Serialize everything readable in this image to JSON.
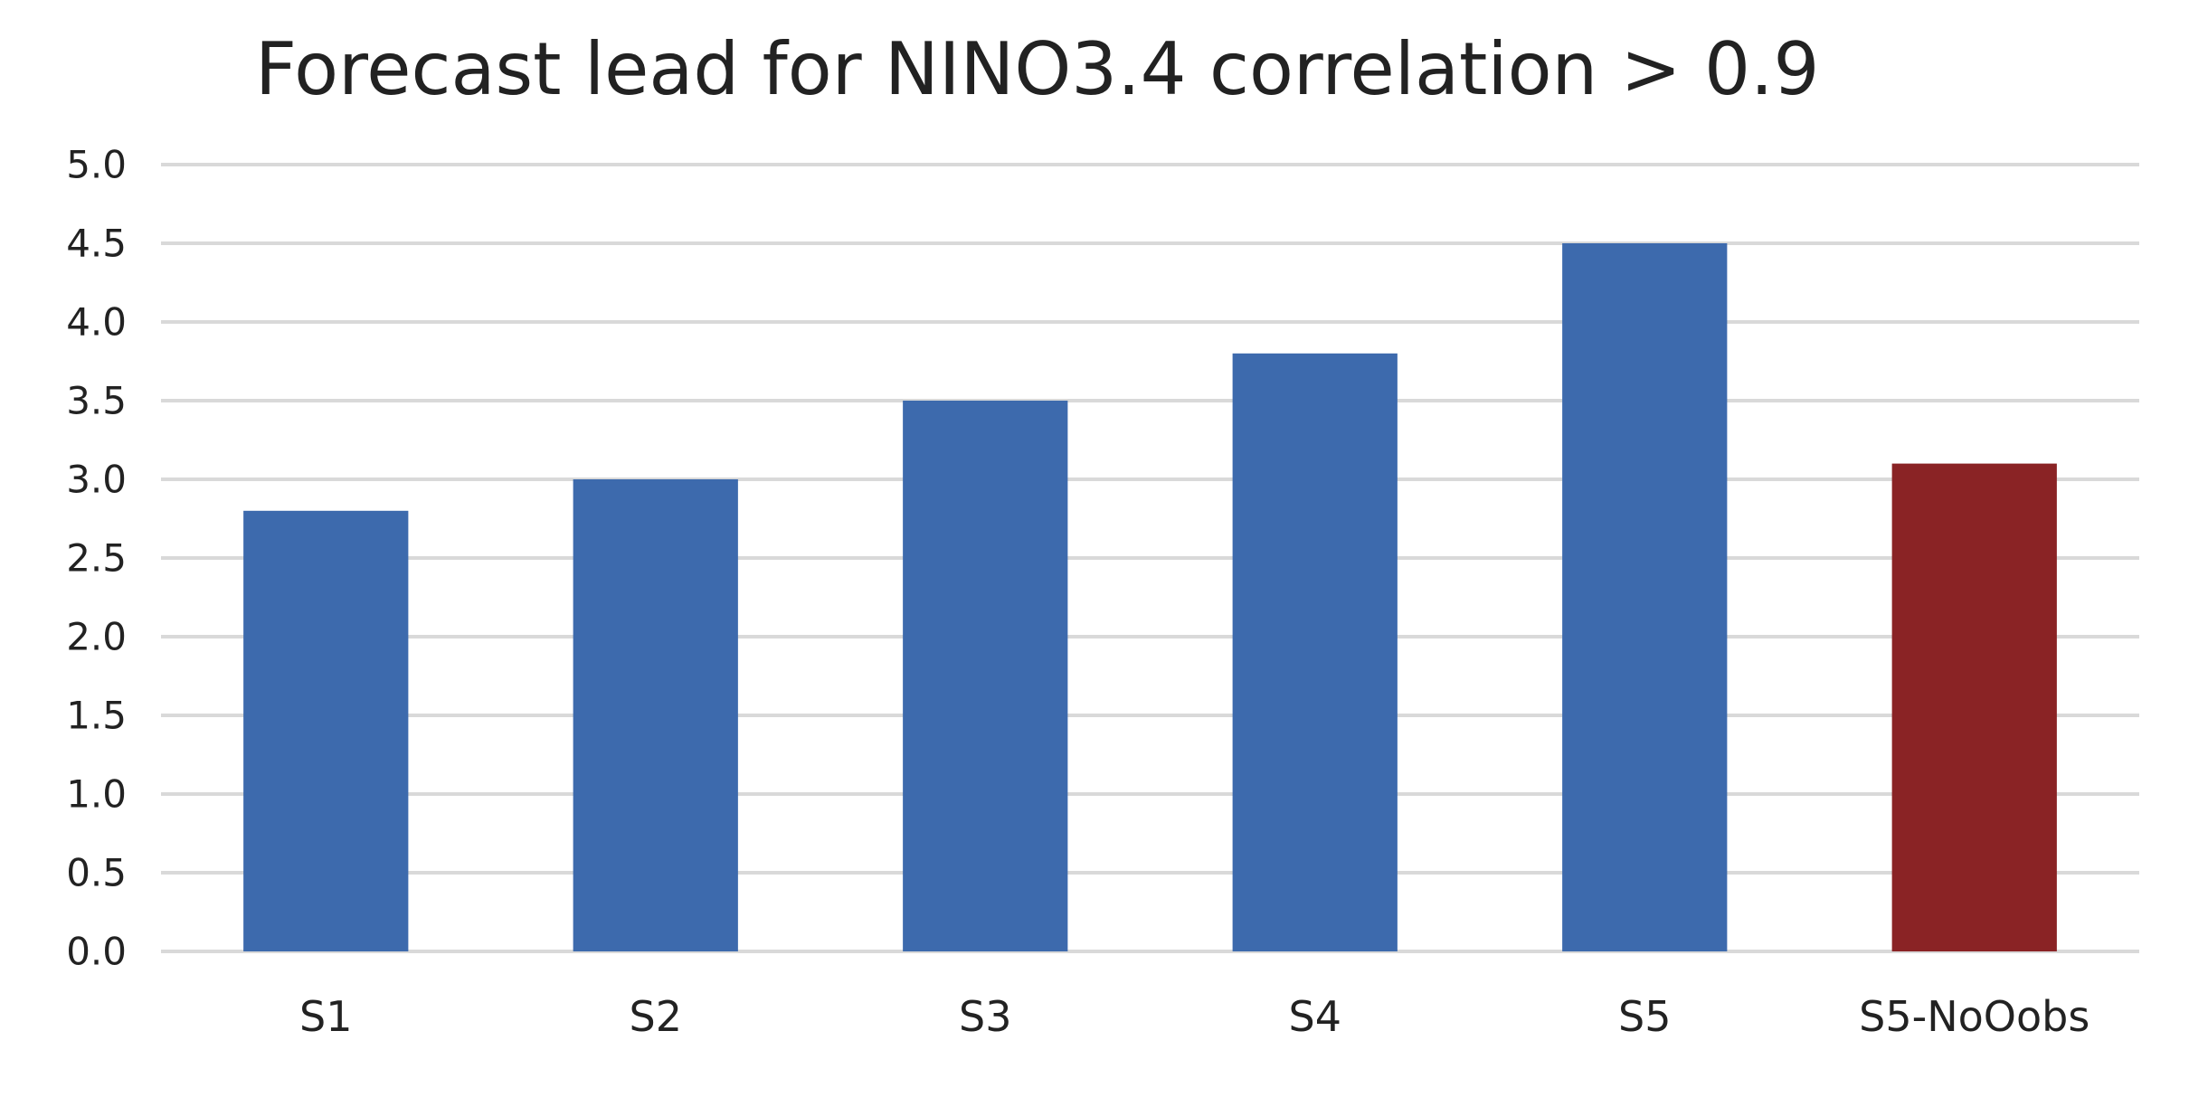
{
  "chart_data": {
    "type": "bar",
    "title": "Forecast lead for NINO3.4 correlation > 0.9",
    "xlabel": "",
    "ylabel": "",
    "categories": [
      "S1",
      "S2",
      "S3",
      "S4",
      "S5",
      "S5-NoOobs"
    ],
    "values": [
      2.8,
      3.0,
      3.5,
      3.8,
      4.5,
      3.1
    ],
    "ylim": [
      0,
      5
    ],
    "y_ticks": [
      "0.0",
      "0.5",
      "1.0",
      "1.5",
      "2.0",
      "2.5",
      "3.0",
      "3.5",
      "4.0",
      "4.5",
      "5.0"
    ],
    "grid": true,
    "legend": "none",
    "colors": {
      "default": "#3d6aad",
      "highlight": "#8a2325",
      "grid": "#d9d9d9",
      "text": "#222222"
    },
    "bar_colors": [
      "#3d6aad",
      "#3d6aad",
      "#3d6aad",
      "#3d6aad",
      "#3d6aad",
      "#8a2325"
    ]
  }
}
